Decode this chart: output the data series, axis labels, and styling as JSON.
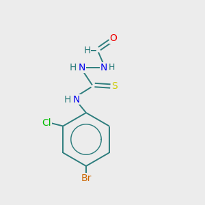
{
  "bg_color": "#ececec",
  "atom_colors": {
    "C": "#2d7d7d",
    "H": "#2d7d7d",
    "N": "#0000ee",
    "O": "#ee0000",
    "S": "#cccc00",
    "Cl": "#00bb00",
    "Br": "#cc6600"
  },
  "bond_color": "#2d7d7d"
}
